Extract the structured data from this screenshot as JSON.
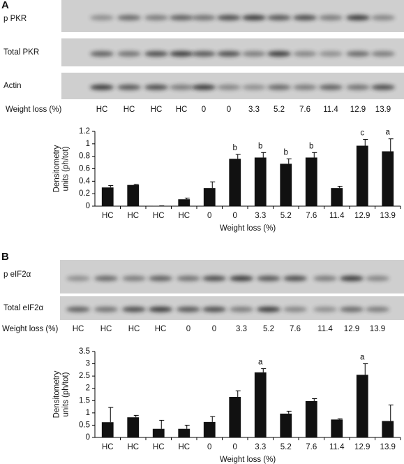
{
  "panels": [
    {
      "label": "A",
      "blots": [
        "p PKR",
        "Total PKR",
        "Actin"
      ],
      "row_label": "Weight loss (%)",
      "row_values": [
        "HC",
        "HC",
        "HC",
        "HC",
        "0",
        "0",
        "3.3",
        "5.2",
        "7.6",
        "11.4",
        "12.9",
        "13.9"
      ]
    },
    {
      "label": "B",
      "blots": [
        "p eIF2α",
        "Total eIF2α"
      ],
      "row_label": "Weight loss (%)",
      "row_values": [
        "HC",
        "HC",
        "HC",
        "HC",
        "0",
        "0",
        "3.3",
        "5.2",
        "7.6",
        "11.4",
        "12.9",
        "13.9"
      ]
    }
  ],
  "chart_data": [
    {
      "type": "bar",
      "xlabel": "Weight loss (%)",
      "ylabel_lines": [
        "Densitometry",
        "units (ph/tot)"
      ],
      "categories": [
        "HC",
        "HC",
        "HC",
        "HC",
        "0",
        "0",
        "3.3",
        "5.2",
        "7.6",
        "11.4",
        "12.9",
        "13.9"
      ],
      "values": [
        0.3,
        0.34,
        0.005,
        0.11,
        0.29,
        0.76,
        0.78,
        0.68,
        0.78,
        0.29,
        0.97,
        0.88
      ],
      "errors": [
        0.03,
        0.01,
        0,
        0.02,
        0.1,
        0.07,
        0.08,
        0.08,
        0.08,
        0.03,
        0.1,
        0.2
      ],
      "bar_labels": [
        null,
        null,
        null,
        null,
        null,
        "b",
        "b",
        "b",
        "b",
        null,
        "c",
        "a"
      ],
      "color": "#111111",
      "ylim": [
        0,
        1.2
      ],
      "yticks": [
        0,
        0.2,
        0.4,
        0.6,
        0.8,
        1,
        1.2
      ]
    },
    {
      "type": "bar",
      "xlabel": "Weight loss (%)",
      "ylabel_lines": [
        "Densitometry",
        "units (ph/tot)"
      ],
      "categories": [
        "HC",
        "HC",
        "HC",
        "HC",
        "0",
        "0",
        "3.3",
        "5.2",
        "7.6",
        "11.4",
        "12.9",
        "13.9"
      ],
      "values": [
        0.62,
        0.82,
        0.35,
        0.35,
        0.63,
        1.65,
        2.65,
        0.97,
        1.48,
        0.73,
        2.55,
        0.67
      ],
      "errors": [
        0.6,
        0.08,
        0.35,
        0.15,
        0.22,
        0.25,
        0.15,
        0.1,
        0.1,
        0.03,
        0.45,
        0.65
      ],
      "bar_labels": [
        null,
        null,
        null,
        null,
        null,
        null,
        "a",
        null,
        null,
        null,
        "a",
        null
      ],
      "color": "#111111",
      "ylim": [
        0,
        3.5
      ],
      "yticks": [
        0,
        0.5,
        1,
        1.5,
        2,
        2.5,
        3,
        3.5
      ]
    }
  ]
}
